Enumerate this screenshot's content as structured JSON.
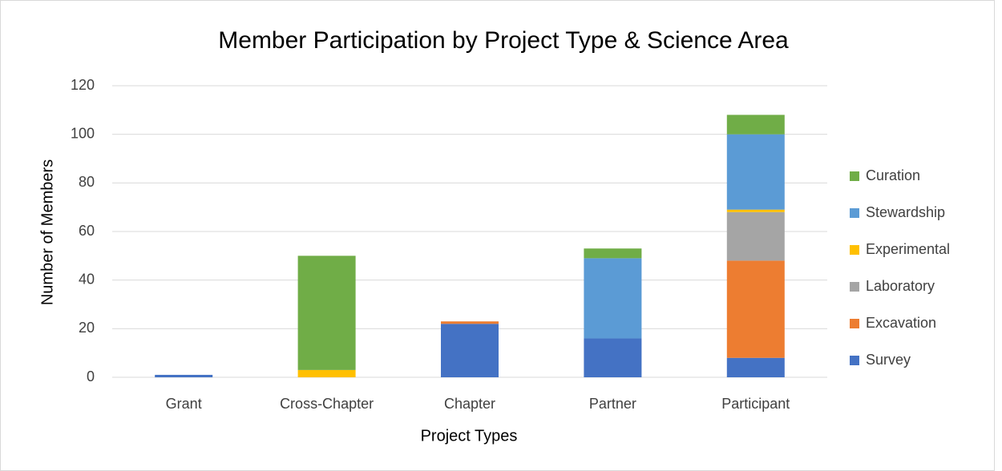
{
  "chart_data": {
    "type": "stacked_bar",
    "title": "Member Participation by Project Type & Science Area",
    "x_label": "Project Types",
    "y_label": "Number of Members",
    "categories": [
      "Grant",
      "Cross-Chapter",
      "Chapter",
      "Partner",
      "Participant"
    ],
    "series": [
      {
        "name": "Survey",
        "color": "#4472c4",
        "values": [
          1,
          0,
          22,
          16,
          8
        ]
      },
      {
        "name": "Excavation",
        "color": "#ed7d31",
        "values": [
          0,
          0,
          1,
          0,
          40
        ]
      },
      {
        "name": "Laboratory",
        "color": "#a5a5a5",
        "values": [
          0,
          0,
          0,
          0,
          20
        ]
      },
      {
        "name": "Experimental",
        "color": "#ffc000",
        "values": [
          0,
          3,
          0,
          0,
          1
        ]
      },
      {
        "name": "Stewardship",
        "color": "#5b9bd5",
        "values": [
          0,
          0,
          0,
          33,
          31
        ]
      },
      {
        "name": "Curation",
        "color": "#70ad47",
        "values": [
          0,
          47,
          0,
          4,
          8
        ]
      }
    ],
    "ylim": [
      0,
      120
    ],
    "yticks": [
      0,
      20,
      40,
      60,
      80,
      100,
      120
    ],
    "grid": true,
    "legend": "right"
  }
}
